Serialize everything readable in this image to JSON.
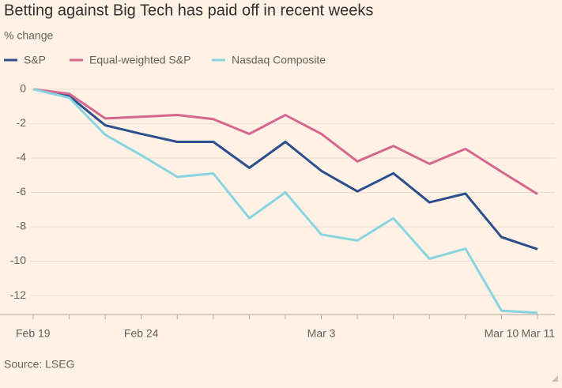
{
  "chart_data": {
    "type": "line",
    "title": "Betting against Big Tech has paid off in recent weeks",
    "subtitle": "% change",
    "source": "Source: LSEG",
    "categories": [
      "Feb 19",
      null,
      null,
      "Feb 24",
      null,
      null,
      null,
      null,
      "Mar 3",
      null,
      null,
      null,
      null,
      "Mar 10",
      "Mar 11"
    ],
    "series": [
      {
        "name": "S&P",
        "color": "#2b4e8c",
        "values": [
          0,
          -0.4,
          -2.1,
          -2.6,
          -3.06,
          -3.06,
          -4.57,
          -3.06,
          -4.75,
          -5.94,
          -4.89,
          -6.58,
          -6.07,
          -8.6,
          -9.3
        ]
      },
      {
        "name": "Equal-weighted S&P",
        "color": "#d5668e",
        "values": [
          0,
          -0.27,
          -1.7,
          -1.6,
          -1.5,
          -1.74,
          -2.6,
          -1.5,
          -2.6,
          -4.2,
          -3.3,
          -4.34,
          -3.47,
          -4.8,
          -6.1
        ]
      },
      {
        "name": "Nasdaq Composite",
        "color": "#88d4e0",
        "values": [
          0,
          -0.5,
          -2.65,
          -3.84,
          -5.1,
          -4.9,
          -7.5,
          -6.0,
          -8.45,
          -8.8,
          -7.5,
          -9.86,
          -9.27,
          -12.88,
          -13.0
        ]
      }
    ],
    "ylim": [
      -13.1,
      0.5
    ],
    "yticks": [
      0,
      -2,
      -4,
      -6,
      -8,
      -10,
      -12
    ],
    "grid": true
  }
}
